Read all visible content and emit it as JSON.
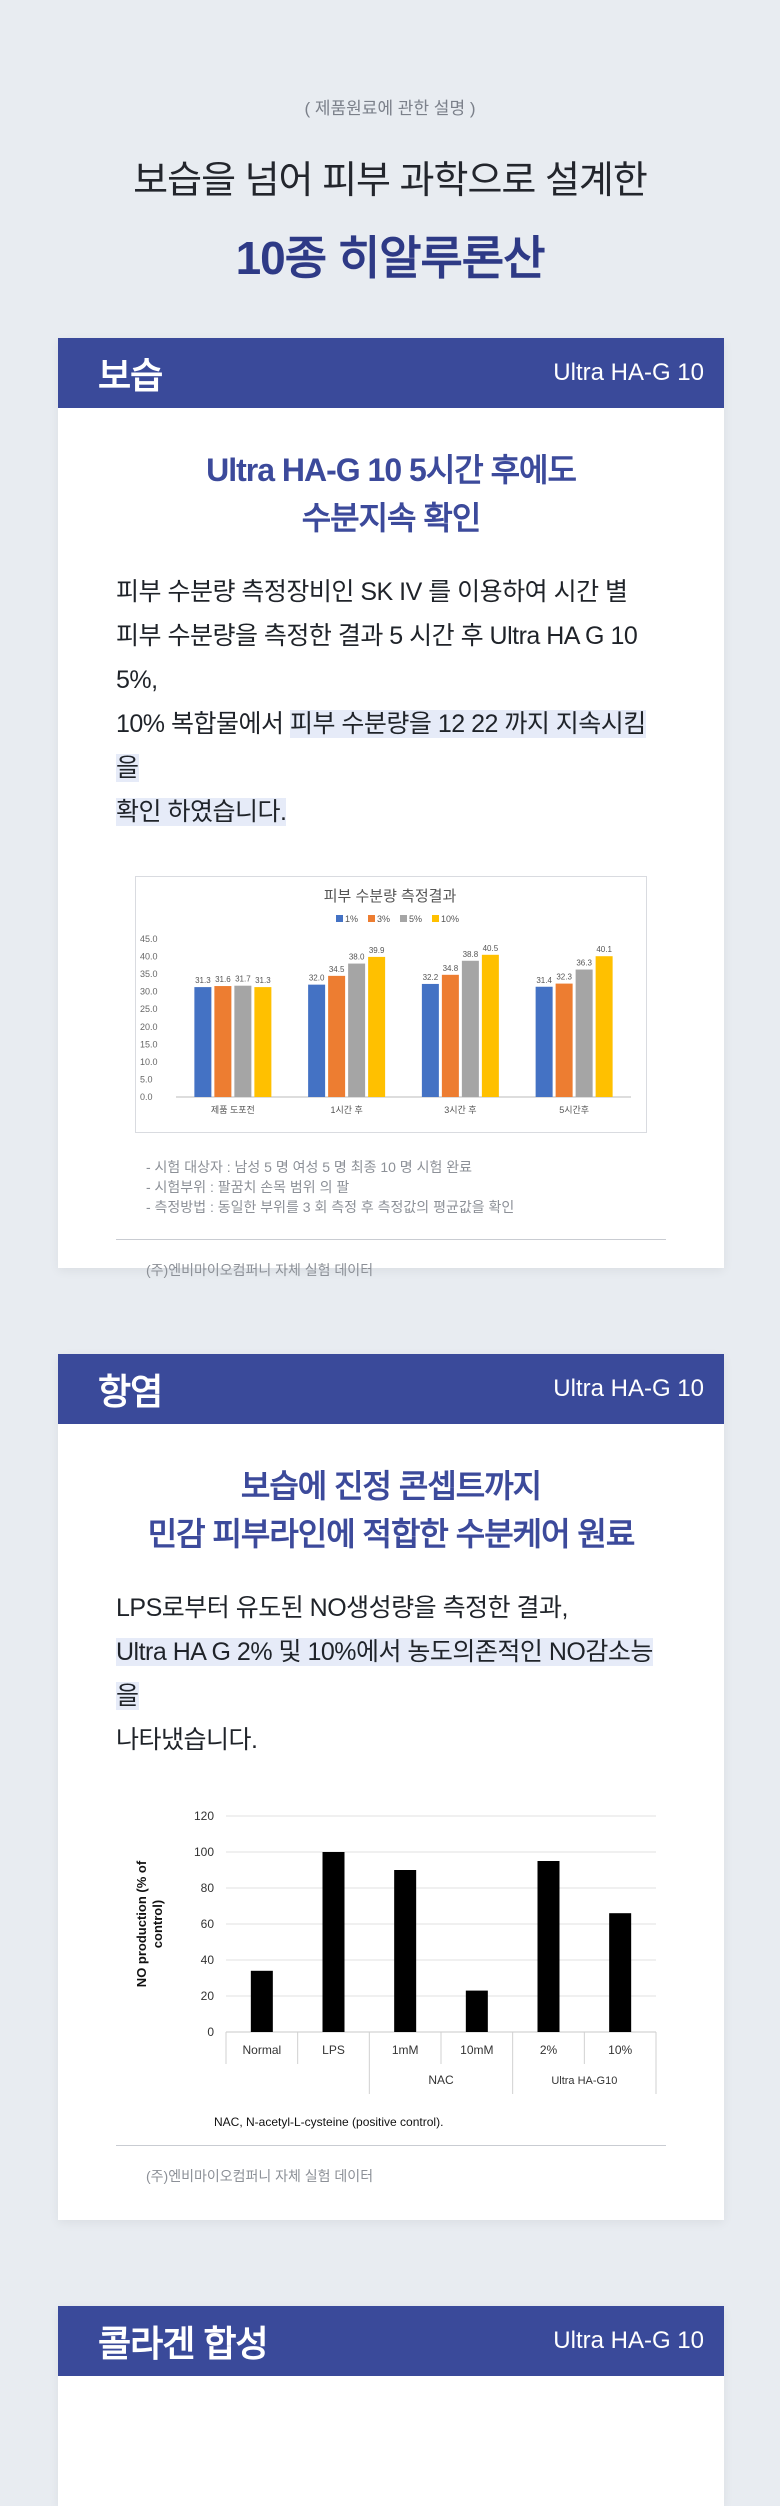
{
  "intro": {
    "subtitle": "( 제품원료에 관한 설명 )",
    "headline": "보습을 넘어 피부 과학으로 설계한",
    "product": "10종 히알루론산"
  },
  "sections": [
    {
      "title": "보습",
      "tag": "Ultra HA-G 10",
      "subtitle_lines": [
        "Ultra HA-G 10 5시간 후에도",
        "수분지속 확인"
      ],
      "desc_lines": [
        "피부 수분량 측정장비인 SK IV 를 이용하여 시간 별",
        "피부 수분량을 측정한 결과 5 시간 후 Ultra HA G 10 5%,",
        "10% 복합물에서 ",
        "피부 수분량을 12 22 까지 지속시킴을",
        "확인 하였습니다."
      ],
      "notes": [
        "- 시험 대상자 : 남성 5 명 여성 5 명 최종 10 명 시험 완료",
        "- 시험부위 : 팔꿈치 손목 범위 의 팔",
        "- 측정방법 : 동일한 부위를 3 회 측정 후 측정값의 평균값을 확인"
      ],
      "source": "(주)엔비마이오컴퍼니 자체 실험 데이터"
    },
    {
      "title": "항염",
      "tag": "Ultra HA-G 10",
      "subtitle_lines": [
        "보습에 진정 콘셉트까지",
        "민감 피부라인에 적합한 수분케어 원료"
      ],
      "desc_lines": [
        "LPS로부터 유도된 NO생성량을 측정한 결과,",
        "Ultra HA G 2% 및 10%에서 농도의존적인 NO감소능을",
        "나타냈습니다."
      ],
      "source": "(주)엔비마이오컴퍼니 자체 실험 데이터"
    },
    {
      "title": "콜라겐 합성",
      "tag": "Ultra HA-G 10"
    }
  ],
  "chart_data": [
    {
      "type": "bar",
      "title": "피부 수분량 측정결과",
      "categories": [
        "제품 도포전",
        "1시간 후",
        "3시간 후",
        "5시간후"
      ],
      "series": [
        {
          "name": "1%",
          "color": "#4472c4",
          "values": [
            31.3,
            32.0,
            32.2,
            31.4
          ]
        },
        {
          "name": "3%",
          "color": "#ed7d31",
          "values": [
            31.6,
            34.5,
            34.8,
            32.3
          ]
        },
        {
          "name": "5%",
          "color": "#a5a5a5",
          "values": [
            31.7,
            38.0,
            38.8,
            36.3
          ]
        },
        {
          "name": "10%",
          "color": "#ffc000",
          "values": [
            31.3,
            39.9,
            40.5,
            40.1
          ]
        }
      ],
      "ylim": [
        0,
        45
      ],
      "yticks": [
        "0.0",
        "5.0",
        "10.0",
        "15.0",
        "20.0",
        "25.0",
        "30.0",
        "35.0",
        "40.0",
        "45.0"
      ],
      "legend": "top"
    },
    {
      "type": "bar",
      "ylabel": "NO production (% of control)",
      "categories": [
        "Normal",
        "LPS",
        "1mM",
        "10mM",
        "2%",
        "10%"
      ],
      "group_labels": [
        "NAC",
        "Ultra HA-G10"
      ],
      "values": [
        34,
        100,
        90,
        23,
        95,
        66
      ],
      "ylim": [
        0,
        120
      ],
      "yticks": [
        "0",
        "20",
        "40",
        "60",
        "80",
        "100",
        "120"
      ],
      "caption": "NAC, N-acetyl-L-cysteine (positive control)."
    }
  ]
}
